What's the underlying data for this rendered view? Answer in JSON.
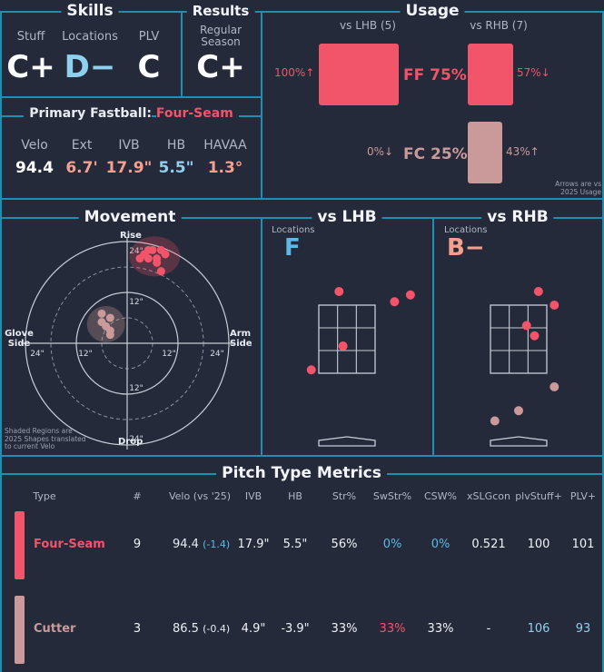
{
  "colors": {
    "fastball": "#f25469",
    "cutter": "#c99a99",
    "blue": "#5fb8e6",
    "line": "#1f8fb0",
    "bg": "#242a3a"
  },
  "skills": {
    "title": "Skills",
    "labels": [
      "Stuff",
      "Locations",
      "PLV"
    ],
    "grades": [
      "C+",
      "D−",
      "C"
    ]
  },
  "results": {
    "title": "Results",
    "label": "Regular Season",
    "grade": "C+"
  },
  "usage": {
    "title": "Usage",
    "vs_lhb": "vs LHB (5)",
    "vs_rhb": "vs RHB (7)",
    "pitches": [
      {
        "label": "FF 75%",
        "lhb_pct": "100%↑",
        "rhb_pct": "57%↓",
        "lhb_value": 100,
        "rhb_value": 57
      },
      {
        "label": "FC 25%",
        "lhb_pct": "0%↓",
        "rhb_pct": "43%↑",
        "lhb_value": 0,
        "rhb_value": 43
      }
    ],
    "note": "Arrows are vs 2025 Usage"
  },
  "primary": {
    "prefix": "Primary Fastball:",
    "name": "Four-Seam",
    "metrics": [
      {
        "label": "Velo",
        "value": "94.4"
      },
      {
        "label": "Ext",
        "value": "6.7'"
      },
      {
        "label": "IVB",
        "value": "17.9\""
      },
      {
        "label": "HB",
        "value": "5.5\""
      },
      {
        "label": "HAVAA",
        "value": "1.3°"
      }
    ]
  },
  "movement": {
    "title": "Movement",
    "rise": "Rise",
    "drop": "Drop",
    "glove": "Glove Side",
    "arm": "Arm Side",
    "ring_labels": [
      "24\"",
      "12\""
    ],
    "note": "Shaded Regions are 2025 Shapes translated to current Velo",
    "fastball_points": [
      [
        4,
        21
      ],
      [
        6,
        22
      ],
      [
        8,
        22
      ],
      [
        9,
        21
      ],
      [
        5,
        20
      ],
      [
        7,
        20
      ],
      [
        3,
        20
      ],
      [
        7,
        19
      ],
      [
        8,
        17
      ],
      [
        5,
        22
      ]
    ],
    "cutter_points": [
      [
        -6,
        5
      ],
      [
        -4,
        6
      ],
      [
        -5,
        4
      ],
      [
        -4,
        3
      ],
      [
        -6,
        7
      ],
      [
        -4,
        2
      ]
    ]
  },
  "vs_lhb": {
    "title": "vs LHB",
    "loc_label": "Locations",
    "grade": "F",
    "pitches": [
      {
        "type": "FF",
        "x": -0.2,
        "y": 3.9
      },
      {
        "type": "FF",
        "x": 1.2,
        "y": 3.6
      },
      {
        "type": "FF",
        "x": 1.6,
        "y": 3.8
      },
      {
        "type": "FF",
        "x": -0.1,
        "y": 2.3
      },
      {
        "type": "FF",
        "x": -0.9,
        "y": 1.6
      }
    ]
  },
  "vs_rhb": {
    "title": "vs RHB",
    "loc_label": "Locations",
    "grade": "B−",
    "pitches": [
      {
        "type": "FF",
        "x": 0.5,
        "y": 3.9
      },
      {
        "type": "FF",
        "x": 0.9,
        "y": 3.5
      },
      {
        "type": "FF",
        "x": 0.2,
        "y": 2.9
      },
      {
        "type": "FF",
        "x": 0.4,
        "y": 2.6
      },
      {
        "type": "FC",
        "x": 0.9,
        "y": 1.1
      },
      {
        "type": "FC",
        "x": 0.0,
        "y": 0.4
      },
      {
        "type": "FC",
        "x": -0.6,
        "y": 0.1
      }
    ]
  },
  "table": {
    "title": "Pitch Type Metrics",
    "headers": [
      "Type",
      "#",
      "Velo (vs '25)",
      "IVB",
      "HB",
      "Str%",
      "SwStr%",
      "CSW%",
      "xSLGcon",
      "plvStuff+",
      "PLV+"
    ],
    "rows": [
      {
        "type": "Four-Seam",
        "count": "9",
        "velo": "94.4",
        "velo_diff": "(-1.4)",
        "ivb": "17.9\"",
        "hb": "5.5\"",
        "str": "56%",
        "swstr": "0%",
        "csw": "0%",
        "xslg": "0.521",
        "stuff": "100",
        "plv": "101"
      },
      {
        "type": "Cutter",
        "count": "3",
        "velo": "86.5",
        "velo_diff": "(-0.4)",
        "ivb": "4.9\"",
        "hb": "-3.9\"",
        "str": "33%",
        "swstr": "33%",
        "csw": "33%",
        "xslg": "-",
        "stuff": "106",
        "plv": "93"
      }
    ]
  }
}
